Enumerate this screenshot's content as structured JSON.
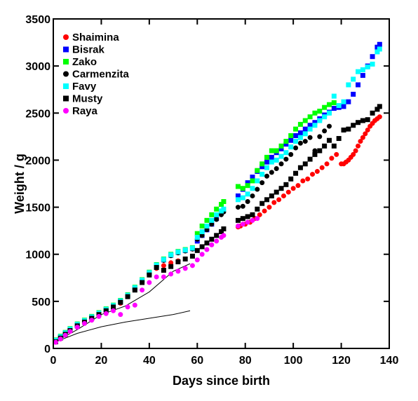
{
  "chart_data": {
    "type": "scatter",
    "title": "",
    "xlabel": "Days since birth",
    "ylabel": "Weight / g",
    "xlim": [
      0,
      140
    ],
    "ylim": [
      0,
      3500
    ],
    "xticks": [
      0,
      20,
      40,
      60,
      80,
      100,
      120,
      140
    ],
    "yticks": [
      0,
      500,
      1000,
      1500,
      2000,
      2500,
      3000,
      3500
    ],
    "legend_position": "top-left",
    "grid": false,
    "series": [
      {
        "name": "Shaimina",
        "color": "#ff0000",
        "marker": "circle",
        "x": [
          1,
          3,
          5,
          7,
          10,
          13,
          16,
          19,
          22,
          25,
          28,
          31,
          34,
          37,
          40,
          43,
          46,
          49,
          52,
          77,
          78,
          80,
          82,
          84,
          86,
          88,
          90,
          92,
          94,
          96,
          98,
          100,
          102,
          104,
          106,
          108,
          110,
          112,
          114,
          116,
          118,
          120,
          121,
          122,
          123,
          124,
          125,
          126,
          127,
          128,
          129,
          130,
          131,
          132,
          133,
          134,
          135,
          136
        ],
        "y": [
          70,
          110,
          150,
          190,
          240,
          280,
          320,
          360,
          400,
          440,
          480,
          550,
          630,
          710,
          780,
          850,
          880,
          910,
          930,
          1290,
          1300,
          1320,
          1340,
          1380,
          1420,
          1460,
          1500,
          1550,
          1580,
          1620,
          1660,
          1700,
          1730,
          1780,
          1800,
          1850,
          1880,
          1920,
          1960,
          2020,
          2060,
          1960,
          1960,
          1980,
          2000,
          2030,
          2060,
          2100,
          2150,
          2200,
          2240,
          2280,
          2320,
          2360,
          2390,
          2420,
          2440,
          2460
        ]
      },
      {
        "name": "Bisrak",
        "color": "#0000ff",
        "marker": "square",
        "x": [
          1,
          3,
          5,
          7,
          10,
          13,
          16,
          19,
          22,
          25,
          28,
          31,
          34,
          37,
          40,
          43,
          46,
          49,
          52,
          55,
          58,
          60,
          62,
          64,
          66,
          68,
          70,
          77,
          79,
          81,
          83,
          85,
          87,
          89,
          91,
          93,
          95,
          97,
          99,
          101,
          103,
          105,
          107,
          109,
          111,
          113,
          115,
          117,
          119,
          121,
          123,
          125,
          127,
          129,
          131,
          133,
          135,
          136
        ],
        "y": [
          80,
          120,
          160,
          200,
          250,
          290,
          330,
          370,
          410,
          450,
          500,
          560,
          640,
          720,
          800,
          880,
          940,
          990,
          1020,
          1040,
          1060,
          1140,
          1200,
          1260,
          1320,
          1380,
          1440,
          1620,
          1690,
          1760,
          1820,
          1880,
          1930,
          1980,
          2030,
          2080,
          2120,
          2170,
          2210,
          2260,
          2290,
          2330,
          2370,
          2400,
          2440,
          2480,
          2510,
          2550,
          2560,
          2570,
          2620,
          2700,
          2800,
          2900,
          3000,
          3100,
          3200,
          3230
        ]
      },
      {
        "name": "Zako",
        "color": "#00ff00",
        "marker": "square",
        "x": [
          1,
          3,
          5,
          7,
          10,
          13,
          16,
          19,
          22,
          25,
          28,
          31,
          34,
          37,
          40,
          43,
          46,
          49,
          52,
          55,
          58,
          60,
          62,
          64,
          66,
          68,
          70,
          71,
          77,
          79,
          81,
          83,
          85,
          87,
          89,
          91,
          93,
          95,
          97,
          99,
          101,
          103,
          105,
          107,
          109,
          111,
          113,
          115,
          117
        ],
        "y": [
          90,
          130,
          170,
          210,
          260,
          300,
          340,
          380,
          420,
          460,
          510,
          570,
          650,
          730,
          810,
          890,
          950,
          1000,
          1030,
          1050,
          1070,
          1220,
          1300,
          1360,
          1420,
          1480,
          1530,
          1560,
          1720,
          1700,
          1730,
          1780,
          1890,
          1960,
          2030,
          2100,
          2100,
          2150,
          2200,
          2260,
          2330,
          2380,
          2420,
          2460,
          2500,
          2520,
          2560,
          2590,
          2610
        ]
      },
      {
        "name": "Carmenzita",
        "color": "#000000",
        "marker": "circle",
        "x": [
          1,
          3,
          5,
          7,
          10,
          13,
          16,
          19,
          22,
          25,
          28,
          31,
          34,
          37,
          40,
          43,
          46,
          49,
          52,
          55,
          58,
          60,
          62,
          64,
          66,
          68,
          70,
          71,
          77,
          79,
          81,
          83,
          85,
          87,
          89,
          91,
          93,
          95,
          97,
          99,
          101,
          103,
          105,
          107,
          109,
          111,
          113,
          115
        ],
        "y": [
          75,
          115,
          155,
          195,
          245,
          285,
          325,
          365,
          405,
          445,
          495,
          555,
          635,
          715,
          795,
          875,
          935,
          985,
          1015,
          1035,
          1055,
          1160,
          1200,
          1260,
          1320,
          1370,
          1420,
          1450,
          1500,
          1510,
          1560,
          1620,
          1690,
          1760,
          1830,
          1870,
          1910,
          1960,
          2010,
          2060,
          2130,
          2180,
          2200,
          2240,
          2100,
          2250,
          2310,
          2360
        ]
      },
      {
        "name": "Favy",
        "color": "#00ffff",
        "marker": "square",
        "x": [
          1,
          3,
          5,
          7,
          10,
          13,
          16,
          19,
          22,
          25,
          28,
          31,
          34,
          37,
          40,
          43,
          46,
          49,
          52,
          55,
          58,
          60,
          62,
          64,
          66,
          68,
          70,
          71,
          77,
          79,
          81,
          83,
          85,
          87,
          89,
          91,
          93,
          95,
          97,
          99,
          101,
          103,
          105,
          107,
          109,
          111,
          113,
          115,
          117,
          119,
          121,
          123,
          125,
          127,
          129,
          131,
          133,
          135,
          136
        ],
        "y": [
          85,
          125,
          165,
          205,
          255,
          295,
          335,
          375,
          415,
          455,
          505,
          565,
          645,
          725,
          805,
          885,
          945,
          995,
          1025,
          1045,
          1065,
          1180,
          1240,
          1300,
          1360,
          1420,
          1460,
          1480,
          1580,
          1600,
          1640,
          1700,
          1780,
          1850,
          1920,
          1980,
          2000,
          2040,
          2080,
          2140,
          2200,
          2240,
          2280,
          2330,
          2370,
          2420,
          2460,
          2500,
          2680,
          2580,
          2620,
          2800,
          2860,
          2940,
          2960,
          2990,
          3020,
          3150,
          3180
        ]
      },
      {
        "name": "Musty",
        "color": "#000000",
        "marker": "square",
        "x": [
          1,
          3,
          5,
          7,
          10,
          13,
          16,
          19,
          22,
          25,
          28,
          31,
          34,
          37,
          40,
          43,
          46,
          49,
          52,
          55,
          58,
          60,
          62,
          64,
          66,
          68,
          70,
          71,
          77,
          79,
          81,
          83,
          85,
          87,
          89,
          91,
          93,
          95,
          97,
          99,
          101,
          103,
          105,
          107,
          109,
          111,
          113,
          115,
          117,
          119,
          121,
          123,
          125,
          127,
          129,
          131,
          133,
          135,
          136
        ],
        "y": [
          70,
          110,
          150,
          190,
          240,
          280,
          320,
          360,
          400,
          440,
          490,
          550,
          620,
          700,
          780,
          860,
          830,
          870,
          920,
          950,
          980,
          1040,
          1080,
          1120,
          1160,
          1200,
          1240,
          1270,
          1360,
          1380,
          1400,
          1420,
          1480,
          1540,
          1580,
          1620,
          1660,
          1700,
          1740,
          1800,
          1860,
          1920,
          1960,
          2010,
          2060,
          2100,
          2150,
          2210,
          2150,
          2230,
          2320,
          2330,
          2370,
          2400,
          2420,
          2430,
          2500,
          2540,
          2570
        ]
      },
      {
        "name": "Raya",
        "color": "#ff00ff",
        "marker": "circle",
        "x": [
          1,
          3,
          5,
          7,
          10,
          13,
          16,
          19,
          22,
          25,
          28,
          31,
          34,
          37,
          40,
          43,
          46,
          49,
          52,
          55,
          58,
          60,
          62,
          64,
          66,
          68,
          70,
          71,
          77,
          79,
          81,
          83,
          85
        ],
        "y": [
          65,
          100,
          140,
          180,
          225,
          265,
          300,
          340,
          370,
          400,
          360,
          440,
          460,
          620,
          700,
          760,
          760,
          790,
          820,
          850,
          880,
          940,
          1000,
          1050,
          1100,
          1140,
          1180,
          1200,
          1300,
          1320,
          1340,
          1360,
          1380
        ]
      }
    ],
    "lines": [
      {
        "x": [
          0,
          10,
          20,
          30,
          40,
          50,
          57
        ],
        "y": [
          60,
          200,
          360,
          450,
          600,
          820,
          900
        ],
        "color": "#000000"
      },
      {
        "x": [
          0,
          10,
          20,
          30,
          40,
          50,
          57
        ],
        "y": [
          60,
          160,
          230,
          280,
          320,
          360,
          400
        ],
        "color": "#000000"
      }
    ]
  }
}
